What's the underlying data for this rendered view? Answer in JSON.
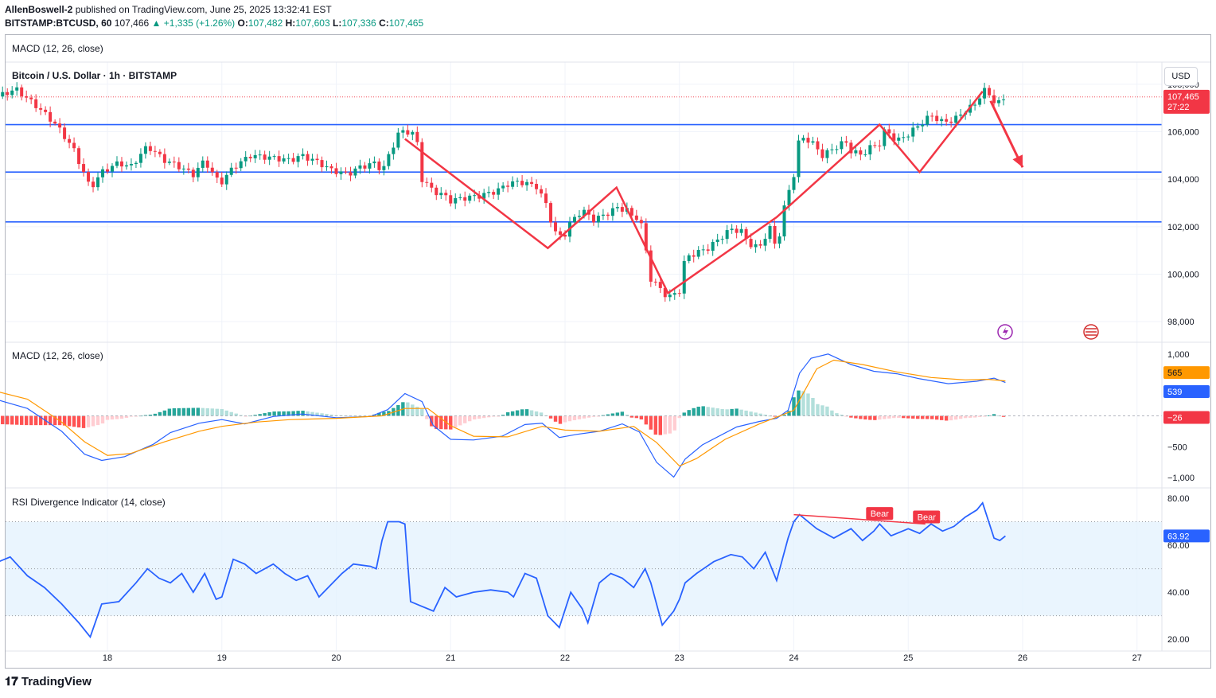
{
  "header": {
    "author": "AllenBoswell-2",
    "published": "published on TradingView.com, June 25, 2025 13:32:41 EST",
    "symbol": "BITSTAMP:BTCUSD, 60",
    "last": "107,466",
    "change": "+1,335 (+1.26%)",
    "o_label": "O:",
    "o": "107,482",
    "h_label": "H:",
    "h": "107,603",
    "l_label": "L:",
    "l": "107,336",
    "c_label": "C:",
    "c": "107,465"
  },
  "top_study_label": "MACD (12, 26, close)",
  "price_pane": {
    "title": "Bitcoin / U.S. Dollar · 1h · BITSTAMP",
    "currency": "USD",
    "price_badge": "107,465",
    "countdown": "27:22",
    "yticks": [
      "108,000",
      "106,000",
      "104,000",
      "102,000",
      "100,000",
      "98,000"
    ]
  },
  "macd_pane": {
    "label": "MACD (12, 26, close)",
    "yticks": [
      "1,000",
      "−500",
      "−1,000"
    ],
    "signal_badge": "565",
    "macd_badge": "539",
    "hist_badge": "−26"
  },
  "rsi_pane": {
    "label": "RSI Divergence Indicator (14, close)",
    "yticks": [
      "80.00",
      "60.00",
      "40.00",
      "20.00"
    ],
    "badge": "63.92",
    "bear1": "Bear",
    "bear2": "Bear"
  },
  "xaxis": [
    "18",
    "19",
    "20",
    "21",
    "22",
    "23",
    "24",
    "25",
    "26",
    "27"
  ],
  "footer": "TradingView",
  "colors": {
    "up": "#089981",
    "down": "#f23645",
    "level": "#2962ff",
    "pattern": "#f23645",
    "macd": "#2962ff",
    "signal": "#ff9800",
    "rsi": "#2962ff",
    "rsi_band": "#e3f2fd"
  },
  "chart_data": [
    {
      "type": "candlestick",
      "title": "Bitcoin / U.S. Dollar · 1h · BITSTAMP",
      "x_start_day": 17,
      "x_days": [
        18,
        19,
        20,
        21,
        22,
        23,
        24,
        25,
        26,
        27
      ],
      "y_unit": "USD",
      "ylim": [
        97300,
        108700
      ],
      "close_path": [
        [
          17.0,
          107400
        ],
        [
          17.2,
          107800
        ],
        [
          17.4,
          107000
        ],
        [
          17.55,
          106300
        ],
        [
          17.7,
          105300
        ],
        [
          17.8,
          104200
        ],
        [
          17.85,
          103600
        ],
        [
          17.95,
          104300
        ],
        [
          18.1,
          104700
        ],
        [
          18.2,
          104500
        ],
        [
          18.35,
          105400
        ],
        [
          18.5,
          104800
        ],
        [
          18.6,
          104600
        ],
        [
          18.75,
          104200
        ],
        [
          18.85,
          104800
        ],
        [
          18.95,
          104000
        ],
        [
          19.0,
          103900
        ],
        [
          19.1,
          104500
        ],
        [
          19.25,
          105000
        ],
        [
          19.45,
          104900
        ],
        [
          19.6,
          104800
        ],
        [
          19.7,
          105000
        ],
        [
          19.85,
          104700
        ],
        [
          19.95,
          104400
        ],
        [
          20.1,
          104200
        ],
        [
          20.2,
          104500
        ],
        [
          20.35,
          104700
        ],
        [
          20.4,
          104300
        ],
        [
          20.45,
          104900
        ],
        [
          20.55,
          106000
        ],
        [
          20.65,
          106000
        ],
        [
          20.7,
          105800
        ],
        [
          20.75,
          104000
        ],
        [
          20.85,
          103500
        ],
        [
          20.95,
          103300
        ],
        [
          21.0,
          103100
        ],
        [
          21.1,
          103200
        ],
        [
          21.25,
          103300
        ],
        [
          21.4,
          103500
        ],
        [
          21.5,
          103800
        ],
        [
          21.6,
          103900
        ],
        [
          21.75,
          103700
        ],
        [
          21.85,
          102800
        ],
        [
          21.9,
          101800
        ],
        [
          21.95,
          101600
        ],
        [
          22.0,
          101700
        ],
        [
          22.05,
          102200
        ],
        [
          22.15,
          102700
        ],
        [
          22.25,
          102300
        ],
        [
          22.35,
          102500
        ],
        [
          22.45,
          102800
        ],
        [
          22.55,
          102700
        ],
        [
          22.6,
          102300
        ],
        [
          22.65,
          102500
        ],
        [
          22.7,
          101200
        ],
        [
          22.75,
          99800
        ],
        [
          22.85,
          99300
        ],
        [
          22.9,
          99000
        ],
        [
          23.0,
          99300
        ],
        [
          23.05,
          100700
        ],
        [
          23.15,
          100900
        ],
        [
          23.25,
          101100
        ],
        [
          23.35,
          101500
        ],
        [
          23.45,
          101900
        ],
        [
          23.55,
          101800
        ],
        [
          23.6,
          101300
        ],
        [
          23.7,
          101100
        ],
        [
          23.75,
          101600
        ],
        [
          23.8,
          102000
        ],
        [
          23.85,
          100900
        ],
        [
          23.9,
          102500
        ],
        [
          23.95,
          103400
        ],
        [
          24.0,
          104200
        ],
        [
          24.05,
          105800
        ],
        [
          24.15,
          105600
        ],
        [
          24.25,
          105000
        ],
        [
          24.35,
          105300
        ],
        [
          24.45,
          105600
        ],
        [
          24.5,
          105200
        ],
        [
          24.6,
          105000
        ],
        [
          24.65,
          105300
        ],
        [
          24.75,
          105500
        ],
        [
          24.8,
          106100
        ],
        [
          24.9,
          105600
        ],
        [
          25.0,
          105900
        ],
        [
          25.1,
          106300
        ],
        [
          25.2,
          106700
        ],
        [
          25.3,
          106400
        ],
        [
          25.4,
          106500
        ],
        [
          25.5,
          106900
        ],
        [
          25.6,
          107200
        ],
        [
          25.65,
          107800
        ],
        [
          25.7,
          107600
        ],
        [
          25.75,
          107300
        ],
        [
          25.8,
          107200
        ],
        [
          25.85,
          107466
        ]
      ],
      "price_label": 107465,
      "horizontal_levels": [
        106300,
        104300,
        102200
      ],
      "pattern_path": [
        [
          20.6,
          105700
        ],
        [
          21.85,
          101100
        ],
        [
          22.45,
          103650
        ],
        [
          22.9,
          99200
        ],
        [
          23.85,
          102400
        ],
        [
          24.75,
          106300
        ],
        [
          25.1,
          104300
        ],
        [
          25.65,
          107700
        ]
      ],
      "projection_arrow": [
        [
          25.72,
          107300
        ],
        [
          26.0,
          104500
        ]
      ]
    },
    {
      "type": "line",
      "title": "MACD (12, 26, close)",
      "ylim": [
        -1100,
        1100
      ],
      "yticks": [
        1000,
        -500,
        -1000
      ],
      "macd": [
        [
          17.0,
          280
        ],
        [
          17.3,
          120
        ],
        [
          17.6,
          -250
        ],
        [
          17.8,
          -620
        ],
        [
          17.95,
          -720
        ],
        [
          18.15,
          -660
        ],
        [
          18.4,
          -460
        ],
        [
          18.55,
          -270
        ],
        [
          18.8,
          -120
        ],
        [
          19.0,
          -60
        ],
        [
          19.2,
          -130
        ],
        [
          19.45,
          -10
        ],
        [
          19.7,
          30
        ],
        [
          20.0,
          -30
        ],
        [
          20.3,
          -10
        ],
        [
          20.45,
          100
        ],
        [
          20.6,
          360
        ],
        [
          20.75,
          230
        ],
        [
          20.85,
          -160
        ],
        [
          21.0,
          -380
        ],
        [
          21.2,
          -390
        ],
        [
          21.45,
          -330
        ],
        [
          21.65,
          -140
        ],
        [
          21.8,
          -120
        ],
        [
          21.95,
          -350
        ],
        [
          22.1,
          -300
        ],
        [
          22.3,
          -250
        ],
        [
          22.5,
          -130
        ],
        [
          22.65,
          -260
        ],
        [
          22.8,
          -750
        ],
        [
          22.95,
          -990
        ],
        [
          23.05,
          -700
        ],
        [
          23.2,
          -470
        ],
        [
          23.5,
          -180
        ],
        [
          23.7,
          -90
        ],
        [
          23.85,
          -40
        ],
        [
          23.95,
          90
        ],
        [
          24.05,
          690
        ],
        [
          24.15,
          930
        ],
        [
          24.3,
          1000
        ],
        [
          24.5,
          830
        ],
        [
          24.7,
          720
        ],
        [
          24.9,
          680
        ],
        [
          25.1,
          600
        ],
        [
          25.35,
          520
        ],
        [
          25.6,
          560
        ],
        [
          25.75,
          610
        ],
        [
          25.85,
          539
        ]
      ],
      "signal": [
        [
          17.0,
          410
        ],
        [
          17.3,
          270
        ],
        [
          17.6,
          -100
        ],
        [
          17.8,
          -420
        ],
        [
          18.0,
          -640
        ],
        [
          18.2,
          -610
        ],
        [
          18.5,
          -420
        ],
        [
          18.8,
          -250
        ],
        [
          19.0,
          -170
        ],
        [
          19.3,
          -100
        ],
        [
          19.6,
          -60
        ],
        [
          20.0,
          -40
        ],
        [
          20.4,
          0
        ],
        [
          20.6,
          120
        ],
        [
          20.8,
          120
        ],
        [
          21.0,
          -160
        ],
        [
          21.2,
          -330
        ],
        [
          21.5,
          -340
        ],
        [
          21.8,
          -170
        ],
        [
          22.0,
          -230
        ],
        [
          22.3,
          -250
        ],
        [
          22.6,
          -170
        ],
        [
          22.8,
          -430
        ],
        [
          23.0,
          -810
        ],
        [
          23.15,
          -690
        ],
        [
          23.4,
          -380
        ],
        [
          23.7,
          -130
        ],
        [
          24.0,
          90
        ],
        [
          24.2,
          760
        ],
        [
          24.35,
          900
        ],
        [
          24.6,
          830
        ],
        [
          24.9,
          710
        ],
        [
          25.2,
          620
        ],
        [
          25.5,
          580
        ],
        [
          25.7,
          590
        ],
        [
          25.85,
          565
        ]
      ],
      "histogram_last": -26
    },
    {
      "type": "line",
      "title": "RSI Divergence Indicator (14, close)",
      "ylim": [
        15,
        82
      ],
      "yticks": [
        80,
        60,
        40,
        20
      ],
      "band": [
        30,
        70
      ],
      "rsi": [
        [
          17.0,
          52
        ],
        [
          17.15,
          55
        ],
        [
          17.3,
          47
        ],
        [
          17.45,
          42
        ],
        [
          17.6,
          35
        ],
        [
          17.75,
          27
        ],
        [
          17.85,
          21
        ],
        [
          17.95,
          35
        ],
        [
          18.1,
          36
        ],
        [
          18.25,
          44
        ],
        [
          18.35,
          50
        ],
        [
          18.45,
          46
        ],
        [
          18.55,
          44
        ],
        [
          18.65,
          48
        ],
        [
          18.75,
          40
        ],
        [
          18.85,
          48
        ],
        [
          18.95,
          37
        ],
        [
          19.0,
          38
        ],
        [
          19.1,
          54
        ],
        [
          19.2,
          52
        ],
        [
          19.3,
          48
        ],
        [
          19.45,
          52
        ],
        [
          19.55,
          48
        ],
        [
          19.65,
          45
        ],
        [
          19.75,
          47
        ],
        [
          19.85,
          38
        ],
        [
          19.95,
          43
        ],
        [
          20.05,
          48
        ],
        [
          20.15,
          52
        ],
        [
          20.3,
          51
        ],
        [
          20.35,
          50
        ],
        [
          20.4,
          62
        ],
        [
          20.45,
          70
        ],
        [
          20.55,
          70
        ],
        [
          20.6,
          69
        ],
        [
          20.65,
          36
        ],
        [
          20.75,
          34
        ],
        [
          20.85,
          32
        ],
        [
          20.95,
          42
        ],
        [
          21.05,
          38
        ],
        [
          21.2,
          40
        ],
        [
          21.35,
          41
        ],
        [
          21.5,
          40
        ],
        [
          21.55,
          38
        ],
        [
          21.65,
          48
        ],
        [
          21.75,
          46
        ],
        [
          21.85,
          30
        ],
        [
          21.95,
          25
        ],
        [
          22.05,
          40
        ],
        [
          22.15,
          33
        ],
        [
          22.2,
          27
        ],
        [
          22.3,
          44
        ],
        [
          22.4,
          48
        ],
        [
          22.5,
          46
        ],
        [
          22.6,
          42
        ],
        [
          22.7,
          50
        ],
        [
          22.75,
          44
        ],
        [
          22.85,
          26
        ],
        [
          22.95,
          32
        ],
        [
          23.0,
          37
        ],
        [
          23.05,
          44
        ],
        [
          23.15,
          48
        ],
        [
          23.3,
          53
        ],
        [
          23.45,
          56
        ],
        [
          23.55,
          55
        ],
        [
          23.65,
          50
        ],
        [
          23.75,
          57
        ],
        [
          23.85,
          45
        ],
        [
          23.95,
          63
        ],
        [
          24.0,
          70
        ],
        [
          24.05,
          73
        ],
        [
          24.2,
          67
        ],
        [
          24.35,
          63
        ],
        [
          24.5,
          67
        ],
        [
          24.6,
          62
        ],
        [
          24.7,
          66
        ],
        [
          24.75,
          69
        ],
        [
          24.85,
          64
        ],
        [
          25.0,
          67
        ],
        [
          25.1,
          65
        ],
        [
          25.2,
          69
        ],
        [
          25.3,
          66
        ],
        [
          25.4,
          68
        ],
        [
          25.5,
          72
        ],
        [
          25.6,
          75
        ],
        [
          25.65,
          78
        ],
        [
          25.75,
          63
        ],
        [
          25.8,
          62
        ],
        [
          25.85,
          63.92
        ]
      ],
      "divergence_line": [
        [
          24.0,
          73
        ],
        [
          25.15,
          69
        ]
      ],
      "badge_value": 63.92
    }
  ]
}
